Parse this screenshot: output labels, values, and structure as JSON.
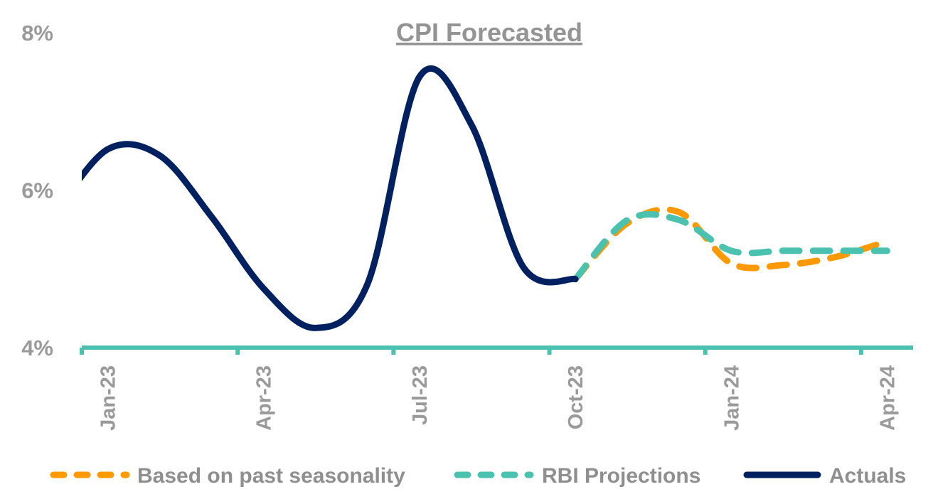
{
  "chart_data": {
    "type": "line",
    "title": "CPI Forecasted",
    "xlabel": "",
    "ylabel": "",
    "ylim": [
      4,
      8
    ],
    "yticks": [
      4,
      6,
      8
    ],
    "ytick_labels": [
      "4%",
      "6%",
      "8%"
    ],
    "grid": false,
    "legend_position": "bottom",
    "x": [
      "Dec-22",
      "Jan-23",
      "Feb-23",
      "Mar-23",
      "Apr-23",
      "May-23",
      "Jun-23",
      "Jul-23",
      "Aug-23",
      "Sep-23",
      "Oct-23",
      "Nov-23",
      "Dec-23",
      "Jan-24",
      "Feb-24",
      "Mar-24",
      "Apr-24"
    ],
    "x_visible_range": [
      "Jan-23",
      "Apr-24"
    ],
    "xtick_labels": [
      "Jan-23",
      "Apr-23",
      "Jul-23",
      "Oct-23",
      "Jan-24",
      "Apr-24"
    ],
    "series": [
      {
        "name": "Based on past seasonality",
        "color": "#FF9900",
        "style": "dashed",
        "values": [
          null,
          null,
          null,
          null,
          null,
          null,
          null,
          null,
          null,
          null,
          4.87,
          5.58,
          5.72,
          5.07,
          5.05,
          5.15,
          5.35
        ]
      },
      {
        "name": "RBI Projections",
        "color": "#4BC2B0",
        "style": "dashed",
        "values": [
          null,
          null,
          null,
          null,
          null,
          null,
          null,
          null,
          null,
          null,
          4.87,
          5.62,
          5.62,
          5.23,
          5.23,
          5.23,
          5.23
        ]
      },
      {
        "name": "Actuals",
        "color": "#00205F",
        "style": "solid",
        "values": [
          5.72,
          6.52,
          6.44,
          5.66,
          4.75,
          4.25,
          4.81,
          7.44,
          6.83,
          5.02,
          4.87,
          null,
          null,
          null,
          null,
          null,
          null
        ]
      }
    ]
  },
  "colors": {
    "axis": "#4BC2B0",
    "text": "#9A9A9A"
  }
}
